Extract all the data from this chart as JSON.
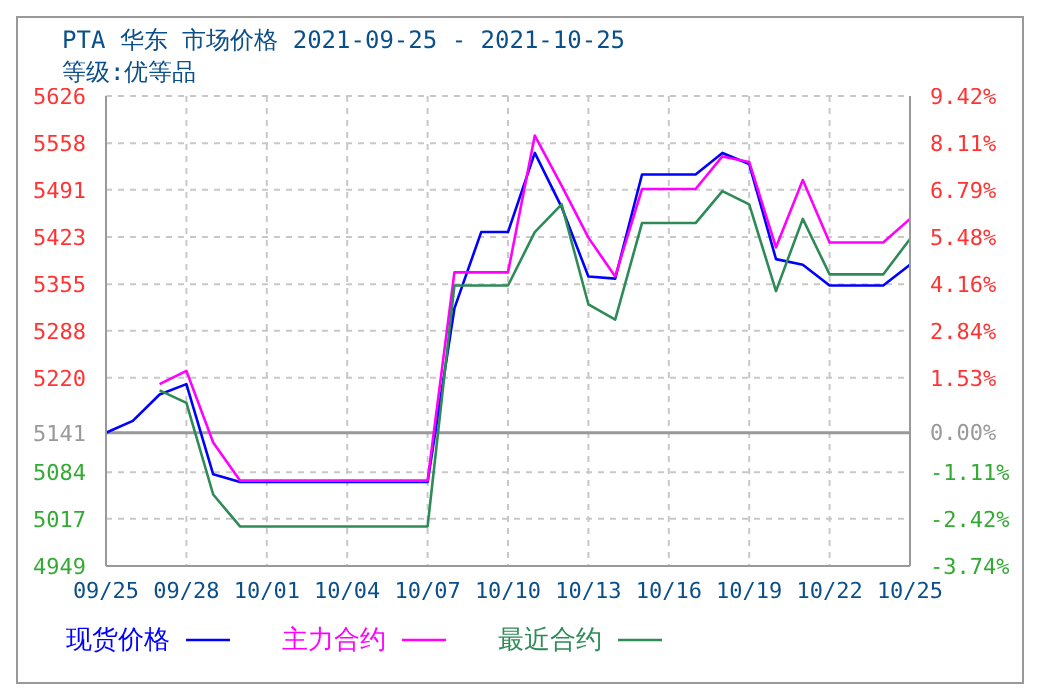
{
  "chart_data": {
    "type": "line",
    "title": "PTA 华东 市场价格 2021-09-25 - 2021-10-25",
    "subtitle": "等级:优等品",
    "categories": [
      "09/25",
      null,
      null,
      "09/28",
      null,
      null,
      "10/01",
      null,
      null,
      "10/04",
      null,
      null,
      "10/07",
      null,
      null,
      "10/10",
      null,
      null,
      "10/13",
      null,
      null,
      "10/16",
      null,
      null,
      "10/19",
      null,
      null,
      "10/22",
      null,
      null,
      "10/25"
    ],
    "series": [
      {
        "name": "现货价格",
        "color": "#0000ff",
        "values": [
          5141,
          5158,
          5196,
          5211,
          5081,
          5070,
          5070,
          5070,
          5070,
          5070,
          5070,
          5070,
          5070,
          5320,
          5430,
          5430,
          5544,
          5466,
          5366,
          5363,
          5513,
          5513,
          5513,
          5544,
          5528,
          5391,
          5383,
          5353,
          5353,
          5353,
          5383
        ]
      },
      {
        "name": "主力合约",
        "color": "#ff00ff",
        "values": [
          null,
          null,
          5211,
          5230,
          5127,
          5072,
          5072,
          5072,
          5072,
          5072,
          5072,
          5072,
          5072,
          5372,
          5372,
          5372,
          5569,
          5497,
          5422,
          5366,
          5492,
          5492,
          5492,
          5539,
          5531,
          5408,
          5505,
          5415,
          5415,
          5415,
          5449
        ]
      },
      {
        "name": "最近合约",
        "color": "#2e8b57",
        "values": [
          null,
          null,
          5202,
          5184,
          5052,
          5006,
          5006,
          5006,
          5006,
          5006,
          5006,
          5006,
          5006,
          5353,
          5353,
          5353,
          5430,
          5470,
          5326,
          5304,
          5443,
          5443,
          5443,
          5489,
          5470,
          5345,
          5449,
          5369,
          5369,
          5369,
          5420
        ]
      }
    ],
    "ylim": [
      4949,
      5626
    ],
    "yticks": [
      4949,
      5017,
      5084,
      5141,
      5220,
      5288,
      5355,
      5423,
      5491,
      5558,
      5626
    ],
    "y2lim": [
      -3.74,
      9.42
    ],
    "y2ticks": [
      {
        "value": -3.74,
        "label": "-3.74%"
      },
      {
        "value": -2.42,
        "label": "-2.42%"
      },
      {
        "value": -1.11,
        "label": "-1.11%"
      },
      {
        "value": 0,
        "label": "0.00%"
      },
      {
        "value": 1.53,
        "label": "1.53%"
      },
      {
        "value": 2.84,
        "label": "2.84%"
      },
      {
        "value": 4.16,
        "label": "4.16%"
      },
      {
        "value": 5.48,
        "label": "5.48%"
      },
      {
        "value": 6.79,
        "label": "6.79%"
      },
      {
        "value": 8.11,
        "label": "8.11%"
      },
      {
        "value": 9.42,
        "label": "9.42%"
      }
    ],
    "ref_lines": [
      {
        "axis": "y",
        "value": 5141,
        "color": "#999999"
      }
    ],
    "grid": true,
    "legend": "bottom",
    "marker": "none",
    "line_style": "solid"
  }
}
